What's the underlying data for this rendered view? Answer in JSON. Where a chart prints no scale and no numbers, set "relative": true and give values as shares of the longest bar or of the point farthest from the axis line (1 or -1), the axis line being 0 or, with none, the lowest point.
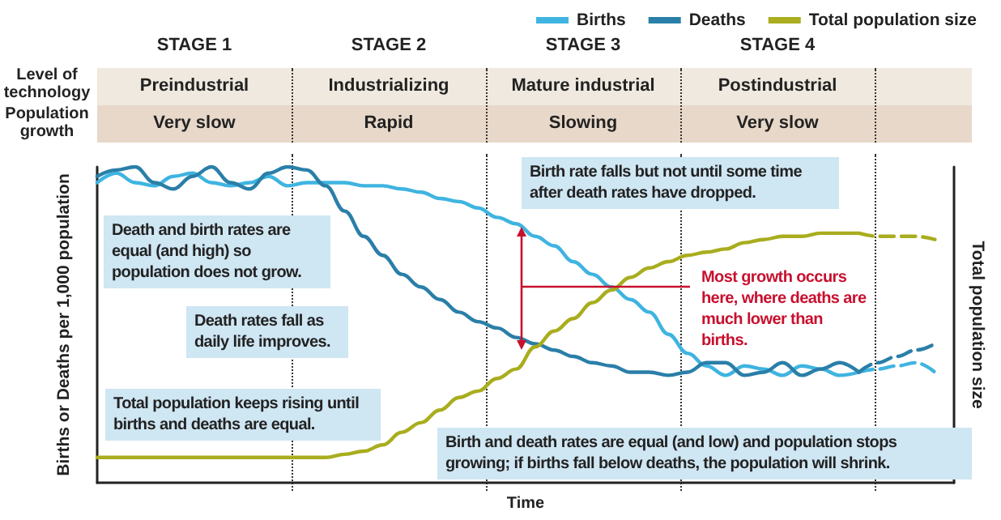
{
  "chart_data": {
    "type": "line",
    "relative": true,
    "xlabel": "Time",
    "ylabel": "Births or Deaths per 1,000 population",
    "y2label": "Total population size",
    "categories": [
      null,
      null,
      null,
      null,
      null,
      null,
      null,
      null,
      null,
      null,
      null,
      null,
      null,
      null,
      null,
      null,
      null,
      null,
      null,
      null,
      null,
      null,
      null,
      null,
      null,
      null,
      null,
      null,
      null,
      null,
      null,
      null,
      null,
      null,
      null,
      null,
      null,
      null,
      null,
      null,
      null,
      null,
      null,
      null,
      null,
      null
    ],
    "legend": "top right",
    "grid": false,
    "marker": "none",
    "tick_labels": false,
    "series": [
      {
        "name": "Births",
        "color": "#3fb4e0",
        "line_style": "solid",
        "values": [
          0.95,
          0.98,
          0.95,
          0.94,
          0.97,
          0.98,
          0.95,
          0.94,
          0.95,
          0.97,
          0.94,
          0.95,
          0.95,
          0.95,
          0.94,
          0.94,
          0.93,
          0.92,
          0.9,
          0.89,
          0.87,
          0.84,
          0.82,
          0.78,
          0.75,
          0.7,
          0.66,
          0.62,
          0.58,
          0.54,
          0.47,
          0.41,
          0.37,
          0.34,
          0.37,
          0.36,
          0.34,
          0.37,
          0.36,
          0.34,
          0.35,
          null,
          null,
          null,
          null,
          null
        ]
      },
      {
        "name": "Deaths",
        "color": "#2a7fa8",
        "line_style": "solid",
        "values": [
          0.97,
          0.99,
          1,
          0.95,
          0.93,
          0.97,
          1,
          0.95,
          0.93,
          0.98,
          1,
          0.99,
          0.94,
          0.86,
          0.78,
          0.72,
          0.66,
          0.62,
          0.58,
          0.54,
          0.51,
          0.49,
          0.46,
          0.44,
          0.42,
          0.4,
          0.38,
          0.37,
          0.35,
          0.35,
          0.34,
          0.35,
          0.38,
          0.38,
          0.34,
          0.35,
          0.38,
          0.34,
          0.36,
          0.38,
          0.35,
          null,
          null,
          null,
          null,
          null
        ]
      },
      {
        "name": "Total population size",
        "color": "#a9ad1e",
        "line_style": "solid",
        "values": [
          0.08,
          0.08,
          0.08,
          0.08,
          0.08,
          0.08,
          0.08,
          0.08,
          0.08,
          0.08,
          0.08,
          0.08,
          0.08,
          0.09,
          0.1,
          0.12,
          0.16,
          0.19,
          0.23,
          0.27,
          0.29,
          0.33,
          0.36,
          0.43,
          0.48,
          0.52,
          0.57,
          0.61,
          0.65,
          0.68,
          0.7,
          0.72,
          0.73,
          0.74,
          0.76,
          0.77,
          0.78,
          0.78,
          0.79,
          0.79,
          0.79,
          null,
          null,
          null,
          null,
          null
        ]
      },
      {
        "color": "#3fb4e0",
        "line_style": "dashed",
        "values": [
          null,
          null,
          null,
          null,
          null,
          null,
          null,
          null,
          null,
          null,
          null,
          null,
          null,
          null,
          null,
          null,
          null,
          null,
          null,
          null,
          null,
          null,
          null,
          null,
          null,
          null,
          null,
          null,
          null,
          null,
          null,
          null,
          null,
          null,
          null,
          null,
          null,
          null,
          null,
          null,
          0.35,
          0.36,
          0.37,
          0.38,
          0.35,
          null
        ]
      },
      {
        "color": "#2a7fa8",
        "line_style": "dashed",
        "values": [
          null,
          null,
          null,
          null,
          null,
          null,
          null,
          null,
          null,
          null,
          null,
          null,
          null,
          null,
          null,
          null,
          null,
          null,
          null,
          null,
          null,
          null,
          null,
          null,
          null,
          null,
          null,
          null,
          null,
          null,
          null,
          null,
          null,
          null,
          null,
          null,
          null,
          null,
          null,
          null,
          0.35,
          0.38,
          0.4,
          0.42,
          0.44,
          null
        ]
      },
      {
        "color": "#a9ad1e",
        "line_style": "dashed",
        "values": [
          null,
          null,
          null,
          null,
          null,
          null,
          null,
          null,
          null,
          null,
          null,
          null,
          null,
          null,
          null,
          null,
          null,
          null,
          null,
          null,
          null,
          null,
          null,
          null,
          null,
          null,
          null,
          null,
          null,
          null,
          null,
          null,
          null,
          null,
          null,
          null,
          null,
          null,
          null,
          null,
          0.79,
          0.78,
          0.78,
          0.78,
          0.77,
          null
        ]
      }
    ],
    "annotations": [
      "STAGE 1",
      "STAGE 2",
      "STAGE 3",
      "STAGE 4",
      "Level of technology",
      "Preindustrial",
      "Industrializing",
      "Mature industrial",
      "Postindustrial",
      "Population growth",
      "Very slow",
      "Rapid",
      "Slowing",
      "Very slow",
      "Death and birth rates are equal (and high) so population does not grow.",
      "Death rates fall as daily life improves.",
      "Total population keeps rising until births and deaths are equal.",
      "Birth rate falls but not until some time after death rates have dropped.",
      "Most growth occurs here, where deaths are much lower than births.",
      "Birth and death rates are equal (and low) and population stops growing; if births fall below deaths, the population will shrink."
    ]
  }
}
